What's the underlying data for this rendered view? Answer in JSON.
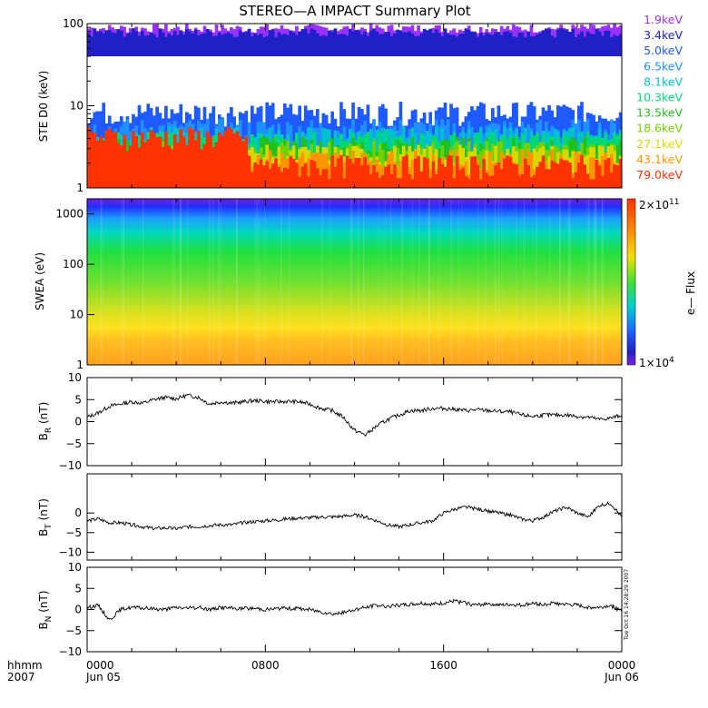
{
  "title": "STEREO—A IMPACT Summary Plot",
  "chart_data": [
    {
      "type": "area",
      "panel": "ste",
      "ylabel": "STE D0 (keV)",
      "yscale": "log",
      "ylim": [
        1,
        100
      ],
      "yticks": [
        "1",
        "10",
        "100"
      ],
      "legend_placement": "right",
      "series": [
        {
          "name": "1.9keV",
          "color": "#9b30ff",
          "level": 90
        },
        {
          "name": "3.4keV",
          "color": "#2020c8",
          "level": 80
        },
        {
          "name": "5.0keV",
          "color": "#1e5aff",
          "level": 8
        },
        {
          "name": "6.5keV",
          "color": "#1e90ff",
          "level": 5
        },
        {
          "name": "8.1keV",
          "color": "#00c0d0",
          "level": 4
        },
        {
          "name": "10.3keV",
          "color": "#00d878",
          "level": 3.5
        },
        {
          "name": "13.5keV",
          "color": "#20c020",
          "level": 3
        },
        {
          "name": "18.6keV",
          "color": "#70d000",
          "level": 2.7
        },
        {
          "name": "27.1keV",
          "color": "#d8d800",
          "level": 2.4
        },
        {
          "name": "43.1keV",
          "color": "#ff9600",
          "level": 2.1
        },
        {
          "name": "79.0keV",
          "color": "#ff3200",
          "level": 1.8
        }
      ]
    },
    {
      "type": "heatmap",
      "panel": "swea",
      "ylabel": "SWEA (eV)",
      "yscale": "log",
      "ylim": [
        1,
        2000
      ],
      "yticks": [
        "1",
        "10",
        "100",
        "1000"
      ],
      "colorbar": {
        "label": "e— Flux",
        "max_label": "2×10",
        "max_exp": "11",
        "min_label": "1×10",
        "min_exp": "4"
      }
    },
    {
      "type": "line",
      "panel": "br",
      "ylabel": "B",
      "ylabel_sub": "R",
      "ylabel_unit": " (nT)",
      "ylim": [
        -10,
        10
      ],
      "yticks": [
        "10",
        "5",
        "0",
        "−5",
        "−10"
      ],
      "x": [
        0,
        0.5,
        1,
        1.5,
        2,
        2.5,
        3,
        3.5,
        4,
        4.5,
        5,
        5.5,
        6,
        6.5,
        7,
        7.5,
        8,
        8.5,
        9,
        9.5,
        10,
        10.5,
        11,
        11.5,
        12,
        12.5,
        13,
        13.5,
        14,
        14.5,
        15,
        15.5,
        16,
        16.5,
        17,
        17.5,
        18,
        18.5,
        19,
        19.5,
        20,
        20.5,
        21,
        21.5,
        22,
        22.5,
        23,
        23.5,
        24
      ],
      "values": [
        1,
        2,
        3.5,
        4,
        4.5,
        4.2,
        5,
        5.5,
        5.2,
        6,
        5.5,
        4,
        4.5,
        4.2,
        4.5,
        4.8,
        4.6,
        4.5,
        4.6,
        4.5,
        4,
        3,
        2.5,
        1,
        -2,
        -3,
        -1,
        0.5,
        1.5,
        2.5,
        2.5,
        3,
        3,
        2.8,
        2.5,
        2.7,
        2.5,
        2.3,
        2.2,
        1.5,
        1.2,
        1.5,
        1.5,
        1.5,
        1.2,
        1,
        0.5,
        0.8,
        1.5
      ]
    },
    {
      "type": "line",
      "panel": "bt",
      "ylabel": "B",
      "ylabel_sub": "T",
      "ylabel_unit": " (nT)",
      "ylim": [
        -12,
        10
      ],
      "yticks": [
        "0",
        "−5",
        "−10"
      ],
      "x": [
        0,
        0.5,
        1,
        1.5,
        2,
        2.5,
        3,
        3.5,
        4,
        4.5,
        5,
        5.5,
        6,
        6.5,
        7,
        7.5,
        8,
        8.5,
        9,
        9.5,
        10,
        10.5,
        11,
        11.5,
        12,
        12.5,
        13,
        13.5,
        14,
        14.5,
        15,
        15.5,
        16,
        16.5,
        17,
        17.5,
        18,
        18.5,
        19,
        19.5,
        20,
        20.5,
        21,
        21.5,
        22,
        22.5,
        23,
        23.5,
        24
      ],
      "values": [
        -2,
        -1.5,
        -2.5,
        -2.5,
        -3,
        -3.5,
        -4,
        -3.8,
        -4,
        -3.5,
        -3.5,
        -3.2,
        -3,
        -3,
        -2.5,
        -2.2,
        -2,
        -1.8,
        -1.5,
        -1.3,
        -1.2,
        -1,
        -1,
        -0.8,
        -0.5,
        -1,
        -2,
        -3,
        -3.5,
        -3,
        -2.5,
        -2,
        0,
        1,
        1.5,
        1,
        0.5,
        0,
        -0.5,
        -1.5,
        -2,
        -1,
        0.5,
        1.5,
        0,
        -1,
        2,
        2.5,
        -1
      ]
    },
    {
      "type": "line",
      "panel": "bn",
      "ylabel": "B",
      "ylabel_sub": "N",
      "ylabel_unit": " (nT)",
      "ylim": [
        -10,
        10
      ],
      "yticks": [
        "10",
        "5",
        "0",
        "−5",
        "−10"
      ],
      "x": [
        0,
        0.5,
        1,
        1.5,
        2,
        2.5,
        3,
        3.5,
        4,
        4.5,
        5,
        5.5,
        6,
        6.5,
        7,
        7.5,
        8,
        8.5,
        9,
        9.5,
        10,
        10.5,
        11,
        11.5,
        12,
        12.5,
        13,
        13.5,
        14,
        14.5,
        15,
        15.5,
        16,
        16.5,
        17,
        17.5,
        18,
        18.5,
        19,
        19.5,
        20,
        20.5,
        21,
        21.5,
        22,
        22.5,
        23,
        23.5,
        24
      ],
      "values": [
        0.5,
        1,
        -2.5,
        0,
        0.5,
        0.3,
        0.2,
        0,
        0.5,
        0.3,
        0.5,
        0,
        0.5,
        0.3,
        0.2,
        0.3,
        0,
        0.2,
        0.3,
        0.2,
        0,
        -0.5,
        -1,
        -0.8,
        0,
        0.5,
        1,
        0.8,
        1,
        1.2,
        1.5,
        1.2,
        1.5,
        2,
        1.5,
        1,
        1.5,
        1,
        1.2,
        1,
        1.5,
        1.2,
        1.5,
        1.2,
        1,
        0.5,
        0.5,
        1,
        -0.5
      ]
    }
  ],
  "xaxis": {
    "hhmm_label": "hhmm",
    "year_label": "2007",
    "ticks": [
      {
        "pos": 0,
        "time": "0000",
        "date": "Jun 05"
      },
      {
        "pos": 8,
        "time": "0800",
        "date": ""
      },
      {
        "pos": 16,
        "time": "1600",
        "date": ""
      },
      {
        "pos": 24,
        "time": "0000",
        "date": "Jun 06"
      }
    ],
    "xlim": [
      0,
      24
    ]
  },
  "timestamp": "Tue Oct 16 14:28:29 2007"
}
